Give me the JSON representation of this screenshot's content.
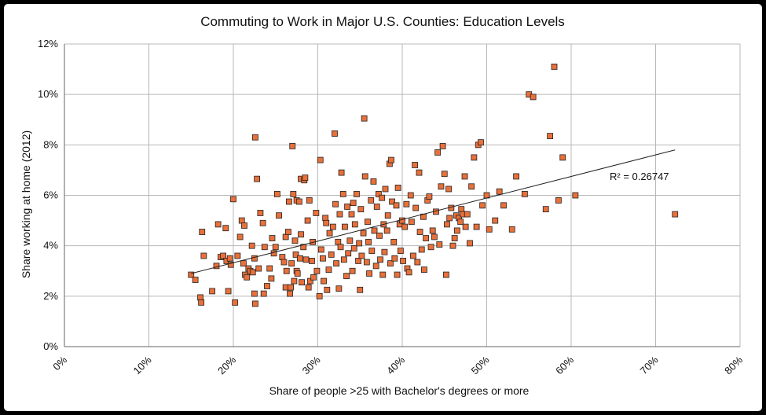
{
  "chart_data": {
    "type": "scatter",
    "title": "Commuting to Work in Major U.S. Counties: Education Levels",
    "xlabel": "Share of people >25 with Bachelor's degrees or more",
    "ylabel": "Share working at home (2012)",
    "xlim": [
      0,
      80
    ],
    "ylim": [
      0,
      12
    ],
    "x_ticks": [
      0,
      10,
      20,
      30,
      40,
      50,
      60,
      70,
      80
    ],
    "y_ticks": [
      0,
      2,
      4,
      6,
      8,
      10,
      12
    ],
    "x_tick_labels": [
      "0%",
      "10%",
      "20%",
      "30%",
      "40%",
      "50%",
      "60%",
      "70%",
      "80%"
    ],
    "y_tick_labels": [
      "0%",
      "2%",
      "4%",
      "6%",
      "8%",
      "10%",
      "12%"
    ],
    "grid": true,
    "legend": "none",
    "marker_color": "#e8703a",
    "marker_edge_color": "#222222",
    "trendline": {
      "type": "linear",
      "x_start": 15,
      "y_start": 2.9,
      "x_end": 72.3,
      "y_end": 7.8,
      "r2_label": "R² = 0.26747"
    },
    "points": [
      [
        15,
        2.85
      ],
      [
        15.5,
        2.65
      ],
      [
        16.1,
        1.95
      ],
      [
        16.2,
        1.75
      ],
      [
        16.3,
        4.55
      ],
      [
        16.5,
        3.6
      ],
      [
        17.5,
        2.2
      ],
      [
        18,
        3.2
      ],
      [
        18.2,
        4.85
      ],
      [
        18.5,
        3.55
      ],
      [
        18.8,
        3.6
      ],
      [
        19.1,
        4.7
      ],
      [
        19.2,
        3.4
      ],
      [
        19.4,
        2.2
      ],
      [
        19.6,
        3.5
      ],
      [
        19.7,
        3.25
      ],
      [
        20,
        5.85
      ],
      [
        20.2,
        1.75
      ],
      [
        20.5,
        3.6
      ],
      [
        20.8,
        4.35
      ],
      [
        21,
        5
      ],
      [
        21.2,
        3.3
      ],
      [
        21.3,
        4.8
      ],
      [
        21.4,
        2.85
      ],
      [
        21.6,
        2.75
      ],
      [
        21.8,
        3.1
      ],
      [
        22,
        3.0
      ],
      [
        22.2,
        4.0
      ],
      [
        22.3,
        2.95
      ],
      [
        22.5,
        3.5
      ],
      [
        22.5,
        2.1
      ],
      [
        22.6,
        1.7
      ],
      [
        22.6,
        8.3
      ],
      [
        22.8,
        6.65
      ],
      [
        23,
        3.1
      ],
      [
        23.2,
        5.3
      ],
      [
        23.5,
        4.9
      ],
      [
        23.6,
        2.1
      ],
      [
        23.7,
        3.95
      ],
      [
        24,
        2.4
      ],
      [
        24.3,
        3.1
      ],
      [
        24.5,
        2.7
      ],
      [
        24.6,
        4.3
      ],
      [
        24.8,
        3.7
      ],
      [
        25,
        3.95
      ],
      [
        25.2,
        6.05
      ],
      [
        25.4,
        5.2
      ],
      [
        25.8,
        3.55
      ],
      [
        26,
        3.35
      ],
      [
        26.2,
        2.35
      ],
      [
        26.2,
        4.35
      ],
      [
        26.3,
        3.0
      ],
      [
        26.5,
        4.55
      ],
      [
        26.6,
        5.75
      ],
      [
        26.7,
        2.1
      ],
      [
        26.8,
        2.35
      ],
      [
        26.9,
        3.3
      ],
      [
        27,
        7.95
      ],
      [
        27.1,
        6.05
      ],
      [
        27.2,
        2.6
      ],
      [
        27.3,
        4.2
      ],
      [
        27.4,
        3.65
      ],
      [
        27.5,
        5.8
      ],
      [
        27.5,
        3.0
      ],
      [
        27.6,
        2.9
      ],
      [
        27.8,
        5.75
      ],
      [
        27.9,
        3.5
      ],
      [
        28,
        6.65
      ],
      [
        28,
        4.45
      ],
      [
        28.1,
        2.55
      ],
      [
        28.3,
        3.95
      ],
      [
        28.4,
        6.6
      ],
      [
        28.5,
        6.7
      ],
      [
        28.6,
        3.45
      ],
      [
        28.8,
        5.0
      ],
      [
        28.9,
        2.35
      ],
      [
        29,
        5.8
      ],
      [
        29.1,
        2.6
      ],
      [
        29.3,
        3.4
      ],
      [
        29.4,
        4.15
      ],
      [
        29.5,
        2.75
      ],
      [
        29.8,
        5.3
      ],
      [
        29.9,
        3.0
      ],
      [
        30.2,
        2.0
      ],
      [
        30.3,
        7.4
      ],
      [
        30.4,
        3.85
      ],
      [
        30.6,
        3.5
      ],
      [
        30.7,
        2.6
      ],
      [
        30.9,
        5.1
      ],
      [
        31,
        4.9
      ],
      [
        31.1,
        2.25
      ],
      [
        31.3,
        3.05
      ],
      [
        31.4,
        4.5
      ],
      [
        31.6,
        3.65
      ],
      [
        31.8,
        4.75
      ],
      [
        32,
        8.45
      ],
      [
        32.1,
        5.65
      ],
      [
        32.2,
        3.3
      ],
      [
        32.4,
        4.15
      ],
      [
        32.5,
        2.3
      ],
      [
        32.6,
        5.25
      ],
      [
        32.7,
        3.95
      ],
      [
        32.8,
        6.9
      ],
      [
        33,
        6.05
      ],
      [
        33.1,
        3.45
      ],
      [
        33.2,
        4.75
      ],
      [
        33.4,
        2.8
      ],
      [
        33.5,
        5.55
      ],
      [
        33.6,
        3.7
      ],
      [
        33.8,
        4.2
      ],
      [
        34,
        5.25
      ],
      [
        34.1,
        3.0
      ],
      [
        34.2,
        5.7
      ],
      [
        34.3,
        3.9
      ],
      [
        34.4,
        4.85
      ],
      [
        34.6,
        6.05
      ],
      [
        34.8,
        3.4
      ],
      [
        34.9,
        4.1
      ],
      [
        35,
        2.25
      ],
      [
        35.1,
        5.45
      ],
      [
        35.2,
        3.6
      ],
      [
        35.4,
        4.5
      ],
      [
        35.5,
        9.05
      ],
      [
        35.6,
        6.75
      ],
      [
        35.8,
        3.35
      ],
      [
        35.9,
        4.95
      ],
      [
        36,
        4.15
      ],
      [
        36.1,
        2.9
      ],
      [
        36.3,
        5.8
      ],
      [
        36.4,
        3.8
      ],
      [
        36.6,
        6.55
      ],
      [
        36.7,
        4.6
      ],
      [
        36.9,
        3.2
      ],
      [
        37,
        5.55
      ],
      [
        37.2,
        6.05
      ],
      [
        37.3,
        4.4
      ],
      [
        37.4,
        3.45
      ],
      [
        37.6,
        5.9
      ],
      [
        37.7,
        2.85
      ],
      [
        37.8,
        4.85
      ],
      [
        37.9,
        3.75
      ],
      [
        38,
        6.25
      ],
      [
        38.2,
        4.6
      ],
      [
        38.3,
        5.2
      ],
      [
        38.5,
        7.25
      ],
      [
        38.6,
        3.3
      ],
      [
        38.7,
        7.4
      ],
      [
        38.8,
        5.75
      ],
      [
        39,
        4.15
      ],
      [
        39.1,
        3.5
      ],
      [
        39.3,
        5.6
      ],
      [
        39.4,
        2.85
      ],
      [
        39.5,
        6.3
      ],
      [
        39.7,
        4.85
      ],
      [
        39.8,
        3.8
      ],
      [
        40,
        5.0
      ],
      [
        40.1,
        3.4
      ],
      [
        40.3,
        4.75
      ],
      [
        40.5,
        5.65
      ],
      [
        40.6,
        3.1
      ],
      [
        40.8,
        2.95
      ],
      [
        41,
        6.0
      ],
      [
        41.1,
        4.95
      ],
      [
        41.3,
        3.6
      ],
      [
        41.5,
        7.2
      ],
      [
        41.6,
        5.5
      ],
      [
        41.8,
        3.35
      ],
      [
        42,
        6.9
      ],
      [
        42.1,
        4.55
      ],
      [
        42.3,
        3.85
      ],
      [
        42.5,
        5.15
      ],
      [
        42.6,
        3.05
      ],
      [
        42.8,
        4.3
      ],
      [
        43,
        5.8
      ],
      [
        43.2,
        5.95
      ],
      [
        43.4,
        3.95
      ],
      [
        43.6,
        4.6
      ],
      [
        43.8,
        4.35
      ],
      [
        44,
        5.35
      ],
      [
        44.2,
        7.7
      ],
      [
        44.4,
        4.05
      ],
      [
        44.6,
        6.35
      ],
      [
        44.8,
        7.95
      ],
      [
        45,
        6.85
      ],
      [
        45.2,
        2.85
      ],
      [
        45.3,
        4.85
      ],
      [
        45.5,
        6.25
      ],
      [
        45.6,
        5.1
      ],
      [
        45.8,
        5.5
      ],
      [
        46,
        4.0
      ],
      [
        46.2,
        4.3
      ],
      [
        46.4,
        5.2
      ],
      [
        46.5,
        4.6
      ],
      [
        46.7,
        5.1
      ],
      [
        46.9,
        4.95
      ],
      [
        47,
        5.45
      ],
      [
        47.2,
        5.25
      ],
      [
        47.4,
        6.75
      ],
      [
        47.5,
        4.75
      ],
      [
        47.7,
        5.25
      ],
      [
        48,
        4.1
      ],
      [
        48.2,
        6.35
      ],
      [
        48.5,
        7.5
      ],
      [
        48.8,
        4.75
      ],
      [
        49,
        8.0
      ],
      [
        49.3,
        8.1
      ],
      [
        49.5,
        5.6
      ],
      [
        50,
        6.0
      ],
      [
        50.3,
        4.65
      ],
      [
        51,
        5.0
      ],
      [
        51.5,
        6.15
      ],
      [
        52,
        5.6
      ],
      [
        53,
        4.65
      ],
      [
        53.5,
        6.75
      ],
      [
        54.5,
        6.05
      ],
      [
        55,
        10.0
      ],
      [
        55.5,
        9.9
      ],
      [
        57,
        5.45
      ],
      [
        57.5,
        8.35
      ],
      [
        58,
        11.1
      ],
      [
        58.5,
        5.8
      ],
      [
        59,
        7.5
      ],
      [
        60.5,
        6.0
      ],
      [
        72.3,
        5.25
      ]
    ]
  }
}
